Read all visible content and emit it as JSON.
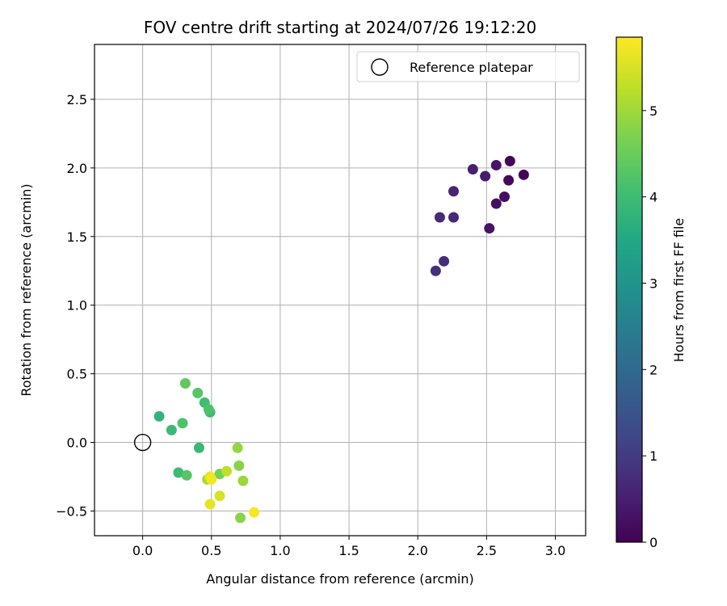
{
  "chart_data": {
    "type": "scatter",
    "title": "FOV centre drift starting at 2024/07/26 19:12:20",
    "xlabel": "Angular distance from reference (arcmin)",
    "ylabel": "Rotation from reference (arcmin)",
    "xlim": [
      -0.35,
      3.22
    ],
    "ylim": [
      -0.68,
      2.9
    ],
    "xticks": [
      0.0,
      0.5,
      1.0,
      1.5,
      2.0,
      2.5,
      3.0
    ],
    "xtick_labels": [
      "0.0",
      "0.5",
      "1.0",
      "1.5",
      "2.0",
      "2.5",
      "3.0"
    ],
    "yticks": [
      -0.5,
      0.0,
      0.5,
      1.0,
      1.5,
      2.0,
      2.5
    ],
    "ytick_labels": [
      "−0.5",
      "0.0",
      "0.5",
      "1.0",
      "1.5",
      "2.0",
      "2.5"
    ],
    "grid": true,
    "legend": {
      "placement": "top-right",
      "entries": [
        "Reference platepar"
      ]
    },
    "reference_point": {
      "x": 0.0,
      "y": 0.0
    },
    "colorbar": {
      "label": "Hours from first FF file",
      "colormap": "viridis",
      "range": [
        0,
        5.85
      ],
      "ticks": [
        0,
        1,
        2,
        3,
        4,
        5
      ],
      "tick_labels": [
        "0",
        "1",
        "2",
        "3",
        "4",
        "5"
      ]
    },
    "points": [
      {
        "x": 2.67,
        "y": 2.05,
        "hours": 0.05
      },
      {
        "x": 2.77,
        "y": 1.95,
        "hours": 0.1
      },
      {
        "x": 2.66,
        "y": 1.91,
        "hours": 0.15
      },
      {
        "x": 2.63,
        "y": 1.79,
        "hours": 0.2
      },
      {
        "x": 2.57,
        "y": 1.74,
        "hours": 0.25
      },
      {
        "x": 2.52,
        "y": 1.56,
        "hours": 0.3
      },
      {
        "x": 2.57,
        "y": 2.02,
        "hours": 0.35
      },
      {
        "x": 2.49,
        "y": 1.94,
        "hours": 0.45
      },
      {
        "x": 2.4,
        "y": 1.99,
        "hours": 0.5
      },
      {
        "x": 2.26,
        "y": 1.83,
        "hours": 0.6
      },
      {
        "x": 2.26,
        "y": 1.64,
        "hours": 0.65
      },
      {
        "x": 2.16,
        "y": 1.64,
        "hours": 0.7
      },
      {
        "x": 2.19,
        "y": 1.32,
        "hours": 0.75
      },
      {
        "x": 2.13,
        "y": 1.25,
        "hours": 0.78
      },
      {
        "x": 0.12,
        "y": 0.19,
        "hours": 3.8
      },
      {
        "x": 0.41,
        "y": -0.04,
        "hours": 3.9
      },
      {
        "x": 0.21,
        "y": 0.09,
        "hours": 3.95
      },
      {
        "x": 0.49,
        "y": 0.22,
        "hours": 3.95
      },
      {
        "x": 0.26,
        "y": -0.22,
        "hours": 4.0
      },
      {
        "x": 0.45,
        "y": 0.29,
        "hours": 4.05
      },
      {
        "x": 0.29,
        "y": 0.14,
        "hours": 4.2
      },
      {
        "x": 0.48,
        "y": 0.24,
        "hours": 4.2
      },
      {
        "x": 0.32,
        "y": -0.24,
        "hours": 4.3
      },
      {
        "x": 0.4,
        "y": 0.36,
        "hours": 4.3
      },
      {
        "x": 0.31,
        "y": 0.43,
        "hours": 4.4
      },
      {
        "x": 0.56,
        "y": -0.23,
        "hours": 4.6
      },
      {
        "x": 0.7,
        "y": -0.17,
        "hours": 4.8
      },
      {
        "x": 0.71,
        "y": -0.55,
        "hours": 4.8
      },
      {
        "x": 0.69,
        "y": -0.04,
        "hours": 4.9
      },
      {
        "x": 0.73,
        "y": -0.28,
        "hours": 4.95
      },
      {
        "x": 0.47,
        "y": -0.27,
        "hours": 5.05
      },
      {
        "x": 0.61,
        "y": -0.21,
        "hours": 5.3
      },
      {
        "x": 0.56,
        "y": -0.39,
        "hours": 5.5
      },
      {
        "x": 0.49,
        "y": -0.45,
        "hours": 5.6
      },
      {
        "x": 0.49,
        "y": -0.25,
        "hours": 5.7
      },
      {
        "x": 0.5,
        "y": -0.27,
        "hours": 5.75
      },
      {
        "x": 0.81,
        "y": -0.51,
        "hours": 5.8
      }
    ]
  }
}
